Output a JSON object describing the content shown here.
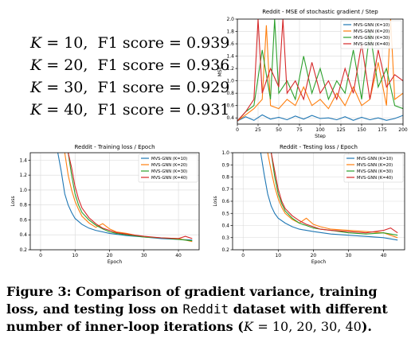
{
  "f1_scores": [
    {
      "k_label": "K",
      "k_value": "10",
      "metric": "F1 score",
      "score": "0.939"
    },
    {
      "k_label": "K",
      "k_value": "20",
      "metric": "F1 score",
      "score": "0.936"
    },
    {
      "k_label": "K",
      "k_value": "30",
      "metric": "F1 score",
      "score": "0.929"
    },
    {
      "k_label": "K",
      "k_value": "40",
      "metric": "F1 score",
      "score": "0.931"
    }
  ],
  "caption": {
    "prefix": "Figure 3: Comparison of gradient variance, training loss, and testing loss on",
    "dataset": "Reddit",
    "middle": "dataset with different number of inner-loop iterations (",
    "k_var": "K",
    "values": "= 10, 20, 30, 40",
    "suffix": ")."
  },
  "colors": {
    "k10": "#1f77b4",
    "k20": "#ff7f0e",
    "k30": "#2ca02c",
    "k40": "#d62728"
  },
  "chart_data": [
    {
      "id": "mse",
      "type": "line",
      "title": "Reddit - MSE of stochastic gradient / Step",
      "xlabel": "Step",
      "ylabel": "MSE",
      "xlim": [
        0,
        200
      ],
      "ylim": [
        0.3,
        2.0
      ],
      "xticks": [
        0,
        25,
        50,
        75,
        100,
        125,
        150,
        175,
        200
      ],
      "yticks": [
        0.4,
        0.6,
        0.8,
        1.0,
        1.2,
        1.4,
        1.6,
        1.8,
        2.0
      ],
      "ytick_labels": [
        "0.4",
        "0.6",
        "0.8",
        "1.0",
        "1.2",
        "1.4",
        "1.6",
        "1.8",
        "2.0"
      ],
      "grid": true,
      "legend_position": "top-right",
      "series": [
        {
          "name": "MVS-GNN (K=10)",
          "color": "#1f77b4",
          "x": [
            0,
            10,
            20,
            30,
            40,
            50,
            60,
            70,
            80,
            90,
            100,
            110,
            120,
            130,
            140,
            150,
            160,
            170,
            180,
            190,
            200
          ],
          "y": [
            0.35,
            0.42,
            0.36,
            0.45,
            0.38,
            0.41,
            0.37,
            0.43,
            0.38,
            0.44,
            0.39,
            0.4,
            0.37,
            0.42,
            0.36,
            0.41,
            0.37,
            0.4,
            0.36,
            0.39,
            0.44
          ]
        },
        {
          "name": "MVS-GNN (K=20)",
          "color": "#ff7f0e",
          "x": [
            0,
            10,
            20,
            30,
            35,
            40,
            50,
            60,
            70,
            80,
            90,
            100,
            110,
            120,
            130,
            140,
            150,
            160,
            170,
            180,
            185,
            190,
            200
          ],
          "y": [
            0.35,
            0.45,
            0.55,
            0.7,
            1.9,
            0.6,
            0.55,
            0.7,
            0.6,
            0.9,
            0.6,
            0.7,
            0.55,
            0.8,
            0.6,
            0.9,
            0.6,
            0.7,
            1.3,
            0.6,
            2.0,
            0.7,
            0.8
          ]
        },
        {
          "name": "MVS-GNN (K=30)",
          "color": "#2ca02c",
          "x": [
            0,
            10,
            20,
            30,
            40,
            45,
            50,
            60,
            70,
            80,
            90,
            100,
            110,
            120,
            130,
            140,
            150,
            160,
            170,
            180,
            190,
            200
          ],
          "y": [
            0.35,
            0.5,
            0.6,
            1.5,
            0.7,
            2.0,
            0.8,
            1.0,
            0.7,
            1.4,
            0.8,
            1.2,
            0.7,
            1.0,
            0.8,
            1.5,
            0.7,
            1.8,
            0.9,
            1.2,
            0.6,
            0.55
          ]
        },
        {
          "name": "MVS-GNN (K=40)",
          "color": "#d62728",
          "x": [
            0,
            10,
            20,
            25,
            30,
            40,
            50,
            55,
            60,
            70,
            80,
            90,
            100,
            110,
            120,
            130,
            140,
            150,
            160,
            170,
            180,
            190,
            200
          ],
          "y": [
            0.35,
            0.5,
            0.7,
            2.0,
            0.8,
            1.2,
            0.9,
            2.0,
            0.8,
            1.0,
            0.7,
            1.3,
            0.8,
            1.0,
            0.7,
            1.2,
            0.8,
            1.6,
            0.7,
            1.5,
            0.9,
            1.1,
            1.0
          ]
        }
      ]
    },
    {
      "id": "train",
      "type": "line",
      "title": "Reddit - Training loss / Epoch",
      "xlabel": "Epoch",
      "ylabel": "Loss",
      "xlim": [
        -3,
        46
      ],
      "ylim": [
        0.2,
        1.5
      ],
      "xticks": [
        0,
        10,
        20,
        30,
        40
      ],
      "yticks": [
        0.2,
        0.4,
        0.6,
        0.8,
        1.0,
        1.2,
        1.4
      ],
      "ytick_labels": [
        "0.2",
        "0.4",
        "0.6",
        "0.8",
        "1.0",
        "1.2",
        "1.4"
      ],
      "grid": true,
      "legend_position": "top-right",
      "series": [
        {
          "name": "MVS-GNN (K=10)",
          "color": "#1f77b4",
          "x": [
            5,
            6,
            7,
            8,
            9,
            10,
            12,
            14,
            16,
            18,
            20,
            25,
            30,
            35,
            40,
            44
          ],
          "y": [
            1.5,
            1.25,
            0.95,
            0.8,
            0.7,
            0.62,
            0.54,
            0.49,
            0.46,
            0.44,
            0.42,
            0.39,
            0.37,
            0.35,
            0.34,
            0.33
          ]
        },
        {
          "name": "MVS-GNN (K=20)",
          "color": "#ff7f0e",
          "x": [
            7,
            8,
            9,
            10,
            11,
            12,
            14,
            16,
            18,
            20,
            22,
            25,
            30,
            35,
            40,
            44
          ],
          "y": [
            1.5,
            1.2,
            1.0,
            0.85,
            0.74,
            0.65,
            0.56,
            0.5,
            0.55,
            0.48,
            0.44,
            0.42,
            0.37,
            0.36,
            0.35,
            0.31
          ]
        },
        {
          "name": "MVS-GNN (K=30)",
          "color": "#2ca02c",
          "x": [
            8,
            9,
            10,
            11,
            12,
            14,
            16,
            18,
            20,
            22,
            25,
            30,
            35,
            40,
            44
          ],
          "y": [
            1.5,
            1.2,
            0.95,
            0.8,
            0.7,
            0.6,
            0.53,
            0.48,
            0.44,
            0.42,
            0.4,
            0.37,
            0.36,
            0.34,
            0.32
          ]
        },
        {
          "name": "MVS-GNN (K=40)",
          "color": "#d62728",
          "x": [
            8,
            9,
            10,
            11,
            12,
            14,
            16,
            18,
            20,
            22,
            25,
            30,
            35,
            40,
            42,
            44
          ],
          "y": [
            1.5,
            1.3,
            1.05,
            0.88,
            0.76,
            0.63,
            0.55,
            0.49,
            0.46,
            0.43,
            0.41,
            0.38,
            0.36,
            0.35,
            0.38,
            0.35
          ]
        }
      ]
    },
    {
      "id": "test",
      "type": "line",
      "title": "Reddit - Testing loss / Epoch",
      "xlabel": "Epoch",
      "ylabel": "Loss",
      "xlim": [
        -3,
        46
      ],
      "ylim": [
        0.2,
        1.0
      ],
      "xticks": [
        0,
        10,
        20,
        30,
        40
      ],
      "yticks": [
        0.2,
        0.3,
        0.4,
        0.5,
        0.6,
        0.7,
        0.8,
        0.9,
        1.0
      ],
      "ytick_labels": [
        "0.2",
        "0.3",
        "0.4",
        "0.5",
        "0.6",
        "0.7",
        "0.8",
        "0.9",
        "1.0"
      ],
      "grid": true,
      "legend_position": "top-right",
      "series": [
        {
          "name": "MVS-GNN (K=10)",
          "color": "#1f77b4",
          "x": [
            5,
            6,
            7,
            8,
            9,
            10,
            12,
            14,
            16,
            18,
            20,
            25,
            30,
            35,
            40,
            44
          ],
          "y": [
            1.0,
            0.82,
            0.66,
            0.56,
            0.5,
            0.46,
            0.42,
            0.39,
            0.37,
            0.36,
            0.35,
            0.33,
            0.32,
            0.31,
            0.3,
            0.28
          ]
        },
        {
          "name": "MVS-GNN (K=20)",
          "color": "#ff7f0e",
          "x": [
            7,
            8,
            9,
            10,
            11,
            12,
            14,
            16,
            18,
            20,
            22,
            25,
            30,
            35,
            40,
            44
          ],
          "y": [
            1.0,
            0.85,
            0.72,
            0.62,
            0.55,
            0.5,
            0.45,
            0.42,
            0.46,
            0.41,
            0.39,
            0.37,
            0.36,
            0.35,
            0.34,
            0.3
          ]
        },
        {
          "name": "MVS-GNN (K=30)",
          "color": "#2ca02c",
          "x": [
            8,
            9,
            10,
            11,
            12,
            14,
            16,
            18,
            20,
            22,
            25,
            30,
            35,
            40,
            44
          ],
          "y": [
            1.0,
            0.8,
            0.66,
            0.58,
            0.52,
            0.46,
            0.42,
            0.4,
            0.38,
            0.37,
            0.36,
            0.34,
            0.33,
            0.34,
            0.32
          ]
        },
        {
          "name": "MVS-GNN (K=40)",
          "color": "#d62728",
          "x": [
            8,
            9,
            10,
            11,
            12,
            14,
            16,
            18,
            20,
            22,
            25,
            30,
            35,
            40,
            42,
            44
          ],
          "y": [
            1.0,
            0.85,
            0.7,
            0.6,
            0.54,
            0.48,
            0.44,
            0.41,
            0.39,
            0.37,
            0.36,
            0.35,
            0.34,
            0.36,
            0.38,
            0.34
          ]
        }
      ]
    }
  ]
}
